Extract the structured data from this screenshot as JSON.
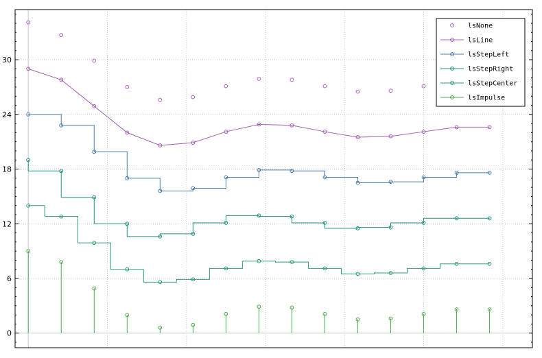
{
  "chart_data": {
    "type": "line",
    "x": [
      0,
      1,
      2,
      3,
      4,
      5,
      6,
      7,
      8,
      9,
      10,
      11,
      12,
      13,
      14
    ],
    "xlim": [
      -0.4,
      15.3
    ],
    "ylim": [
      -1.6,
      35.5
    ],
    "yticks": [
      0,
      6,
      12,
      18,
      24,
      30
    ],
    "xgrid": [
      2.4,
      4.8,
      7.2,
      9.6,
      12.0,
      14.4
    ],
    "grid": true,
    "legend_position": "top-right",
    "colors": {
      "lsNone": "#b05cc8",
      "lsLine": "#a45cb8",
      "lsStepLeft": "#4a7cac",
      "lsStepRight": "#1f9080",
      "lsStepCenter": "#2b9e72",
      "lsImpulse": "#4caa4c"
    },
    "series": [
      {
        "name": "lsNone",
        "style": "none",
        "values": [
          34.1,
          32.7,
          29.9,
          27.0,
          25.6,
          25.9,
          27.1,
          27.9,
          27.8,
          27.1,
          26.5,
          26.6,
          27.1,
          27.7,
          27.7
        ]
      },
      {
        "name": "lsLine",
        "style": "line",
        "values": [
          29.0,
          27.8,
          24.9,
          22.0,
          20.6,
          20.9,
          22.1,
          22.9,
          22.8,
          22.1,
          21.5,
          21.6,
          22.1,
          22.6,
          22.6
        ]
      },
      {
        "name": "lsStepLeft",
        "style": "stepLeft",
        "values": [
          24.0,
          22.8,
          19.9,
          17.0,
          15.6,
          15.9,
          17.1,
          17.9,
          17.8,
          17.1,
          16.5,
          16.6,
          17.1,
          17.6,
          17.6
        ]
      },
      {
        "name": "lsStepRight",
        "style": "stepRight",
        "values": [
          19.0,
          17.8,
          14.9,
          12.0,
          10.6,
          10.9,
          12.1,
          12.9,
          12.8,
          12.1,
          11.5,
          11.6,
          12.1,
          12.6,
          12.6
        ]
      },
      {
        "name": "lsStepCenter",
        "style": "stepCenter",
        "values": [
          14.0,
          12.8,
          9.9,
          7.0,
          5.6,
          5.9,
          7.1,
          7.9,
          7.8,
          7.1,
          6.5,
          6.6,
          7.1,
          7.6,
          7.6
        ]
      },
      {
        "name": "lsImpulse",
        "style": "impulse",
        "values": [
          9.0,
          7.8,
          4.9,
          2.0,
          0.6,
          0.9,
          2.1,
          2.9,
          2.8,
          2.1,
          1.5,
          1.6,
          2.1,
          2.6,
          2.6
        ]
      }
    ]
  }
}
